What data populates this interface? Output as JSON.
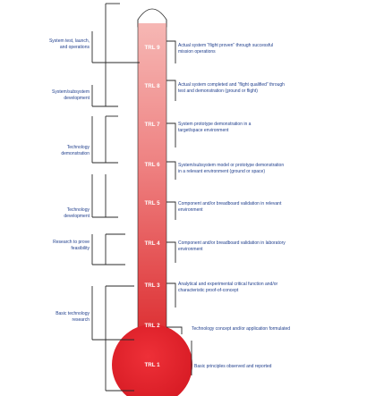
{
  "stages": [
    {
      "id": "system-test",
      "lines": [
        "System test, launch,",
        "and operations"
      ]
    },
    {
      "id": "system-subsystem-development",
      "lines": [
        "System/subsystem",
        "development"
      ]
    },
    {
      "id": "technology-demonstration",
      "lines": [
        "Technology",
        "demonstration"
      ]
    },
    {
      "id": "technology-development",
      "lines": [
        "Technology",
        "development"
      ]
    },
    {
      "id": "research-to-prove-feasibility",
      "lines": [
        "Research to prove",
        "feasibility"
      ]
    },
    {
      "id": "basic-technology-research",
      "lines": [
        "Basic technology",
        "research"
      ]
    }
  ],
  "levels": [
    {
      "label": "TRL 9",
      "lines": [
        "Actual system “flight proven” through successful",
        "mission operations"
      ]
    },
    {
      "label": "TRL 8",
      "lines": [
        "Actual system completed and “flight qualified” through",
        "test and demonstration (ground or flight)"
      ]
    },
    {
      "label": "TRL 7",
      "lines": [
        "System prototype demonstration in a",
        "target/space environment"
      ]
    },
    {
      "label": "TRL 6",
      "lines": [
        "System/subsystem model or prototype demonstration",
        "in a relevant environment (ground or space)"
      ]
    },
    {
      "label": "TRL 5",
      "lines": [
        "Component and/or breadboard validation in relevant",
        "environment"
      ]
    },
    {
      "label": "TRL 4",
      "lines": [
        "Component and/or breadboard validation in laboratory",
        "environment"
      ]
    },
    {
      "label": "TRL 3",
      "lines": [
        "Analytical and experimental critical function and/or",
        "characteristic proof-of-concept"
      ]
    },
    {
      "label": "TRL 2",
      "lines": [
        "Technology concept and/or application formulated"
      ]
    },
    {
      "label": "TRL 1",
      "lines": [
        "Basic principles observed and reported"
      ]
    }
  ],
  "colors": {
    "tube_top": "#f4a9a6",
    "tube_bottom": "#dc2b2e",
    "bulb": "#e0202a",
    "text": "#1f3e8c",
    "lines": "#2a2a2a"
  }
}
